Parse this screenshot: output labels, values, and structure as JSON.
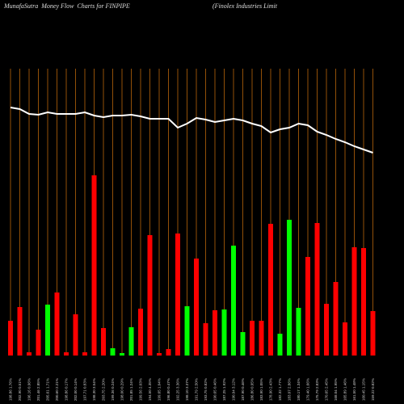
{
  "chart_data": {
    "type": "bar",
    "title": "MunafaSutra  Money Flow  Charts for FINPIPE",
    "subtitle": "(Finolex Industries Limit",
    "categories": [
      "198.86 1.76%",
      "202.90 0.51%",
      "196.16 0.96%",
      "201.46 2.85%",
      "205.61 1.71%",
      "200.60 2.21%",
      "198.86 0.17%",
      "202.00 0.14%",
      "197.71 0.83%",
      "198.30 3.54%",
      "203.75 2.20%",
      "199.36 0.24%",
      "198.00 0.29%",
      "201.85 1.24%",
      "199.56 2.03%",
      "194.50 4.35%",
      "199.65 1.04%",
      "196.80 0.47%",
      "192.25 3.36%",
      "198.10 3.37%",
      "191.79 2.50%",
      "193.75 0.82%",
      "190.65 0.46%",
      "187.25 1.92%",
      "190.94 3.12%",
      "187.90 0.46%",
      "186.80 0.95%",
      "183.90 1.05%",
      "178.90 2.43%",
      "182.32 1.77%",
      "183.07 2.86%",
      "180.17 1.34%",
      "179.40 1.66%",
      "175.79 2.83%",
      "170.65 2.45%",
      "168.04 1.95%",
      "165.89 1.46%",
      "161.50 1.48%",
      "160.45 1.15%",
      "159.22 0.82%"
    ],
    "values": [
      43,
      60,
      4,
      32,
      63,
      78,
      4,
      51,
      4,
      223,
      34,
      9,
      3,
      35,
      58,
      149,
      3,
      8,
      151,
      61,
      120,
      40,
      56,
      57,
      136,
      29,
      43,
      43,
      163,
      27,
      168,
      59,
      122,
      164,
      64,
      91,
      41,
      134,
      133,
      55
    ],
    "colors": [
      "#ff0000",
      "#ff0000",
      "#ff0000",
      "#ff0000",
      "#00ff00",
      "#ff0000",
      "#ff0000",
      "#ff0000",
      "#ff0000",
      "#ff0000",
      "#ff0000",
      "#00ff00",
      "#00ff00",
      "#00ff00",
      "#ff0000",
      "#ff0000",
      "#ff0000",
      "#ff0000",
      "#ff0000",
      "#00ff00",
      "#ff0000",
      "#ff0000",
      "#ff0000",
      "#00ff00",
      "#00ff00",
      "#00ff00",
      "#ff0000",
      "#ff0000",
      "#ff0000",
      "#00ff00",
      "#00ff00",
      "#00ff00",
      "#ff0000",
      "#ff0000",
      "#ff0000",
      "#ff0000",
      "#ff0000",
      "#ff0000",
      "#ff0000",
      "#ff0000"
    ],
    "line_values": [
      307,
      305,
      299,
      298,
      301,
      299,
      299,
      299,
      301,
      297,
      295,
      297,
      297,
      298,
      296,
      293,
      293,
      293,
      282,
      287,
      294,
      292,
      289,
      291,
      293,
      291,
      287,
      284,
      276,
      280,
      282,
      287,
      285,
      277,
      273,
      268,
      264,
      259,
      255,
      251
    ],
    "line_color": "#ffffff",
    "grid_color": "#b8650a",
    "ylim": [
      0,
      400
    ],
    "grid": true
  }
}
